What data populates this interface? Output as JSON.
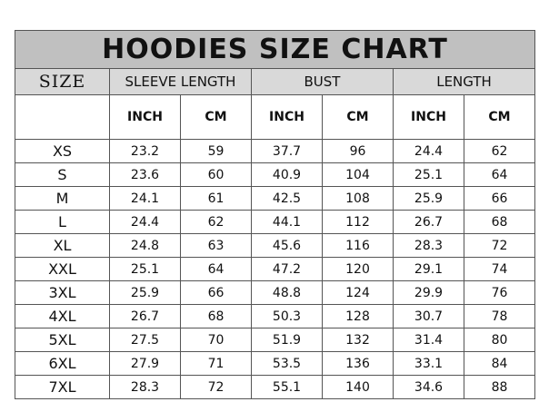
{
  "title": "HOODIES SIZE CHART",
  "header": [
    "SIZE",
    "SLEEVE LENGTH",
    "BUST",
    "LENGTH"
  ],
  "subheader": [
    "INCH",
    "CM",
    "INCH",
    "CM",
    "INCH",
    "CM"
  ],
  "rows": [
    [
      "XS",
      "23.2",
      "59",
      "37.7",
      "96",
      "24.4",
      "62"
    ],
    [
      "S",
      "23.6",
      "60",
      "40.9",
      "104",
      "25.1",
      "64"
    ],
    [
      "M",
      "24.1",
      "61",
      "42.5",
      "108",
      "25.9",
      "66"
    ],
    [
      "L",
      "24.4",
      "62",
      "44.1",
      "112",
      "26.7",
      "68"
    ],
    [
      "XL",
      "24.8",
      "63",
      "45.6",
      "116",
      "28.3",
      "72"
    ],
    [
      "XXL",
      "25.1",
      "64",
      "47.2",
      "120",
      "29.1",
      "74"
    ],
    [
      "3XL",
      "25.9",
      "66",
      "48.8",
      "124",
      "29.9",
      "76"
    ],
    [
      "4XL",
      "26.7",
      "68",
      "50.3",
      "128",
      "30.7",
      "78"
    ],
    [
      "5XL",
      "27.5",
      "70",
      "51.9",
      "132",
      "31.4",
      "80"
    ],
    [
      "6XL",
      "27.9",
      "71",
      "53.5",
      "136",
      "33.1",
      "84"
    ],
    [
      "7XL",
      "28.3",
      "72",
      "55.1",
      "140",
      "34.6",
      "88"
    ]
  ]
}
